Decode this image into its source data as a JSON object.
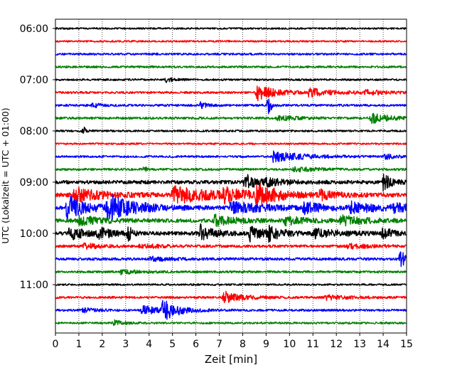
{
  "chart_data": {
    "type": "line",
    "subtype": "helicorder",
    "xlabel": "Zeit  [min]",
    "ylabel": "UTC (Lokalzeit = UTC + 01:00)",
    "xlim": [
      0,
      15
    ],
    "xticks": [
      "0",
      "1",
      "2",
      "3",
      "4",
      "5",
      "6",
      "7",
      "8",
      "9",
      "10",
      "11",
      "12",
      "13",
      "14",
      "15"
    ],
    "x_grid": "dotted vertical lines at each minute",
    "trace_interval_minutes": 15,
    "time_labels": [
      "06:00",
      "07:00",
      "08:00",
      "09:00",
      "10:00",
      "11:00"
    ],
    "trace_colors": [
      "#000000",
      "#ff0000",
      "#0000ff",
      "#008000"
    ],
    "traces": [
      {
        "start": "06:00",
        "color": "#000000",
        "base_amp": 1.2,
        "events": []
      },
      {
        "start": "06:15",
        "color": "#ff0000",
        "base_amp": 1.2,
        "events": []
      },
      {
        "start": "06:30",
        "color": "#0000ff",
        "base_amp": 1.4,
        "events": []
      },
      {
        "start": "06:45",
        "color": "#008000",
        "base_amp": 1.4,
        "events": []
      },
      {
        "start": "07:00",
        "color": "#000000",
        "base_amp": 1.3,
        "events": [
          {
            "t": 4.7,
            "amp": 3,
            "dur": 0.4
          }
        ]
      },
      {
        "start": "07:15",
        "color": "#ff0000",
        "base_amp": 1.5,
        "events": [
          {
            "t": 8.6,
            "amp": 11,
            "dur": 0.8
          },
          {
            "t": 10.8,
            "amp": 5,
            "dur": 1.2
          },
          {
            "t": 13.2,
            "amp": 3,
            "dur": 0.8
          }
        ]
      },
      {
        "start": "07:30",
        "color": "#0000ff",
        "base_amp": 1.5,
        "events": [
          {
            "t": 9.1,
            "amp": 16,
            "dur": 0.1
          },
          {
            "t": 6.2,
            "amp": 4,
            "dur": 0.3
          },
          {
            "t": 1.6,
            "amp": 3,
            "dur": 0.3
          }
        ]
      },
      {
        "start": "07:45",
        "color": "#008000",
        "base_amp": 1.6,
        "events": [
          {
            "t": 13.5,
            "amp": 7,
            "dur": 0.7
          },
          {
            "t": 9.5,
            "amp": 3,
            "dur": 0.8
          }
        ]
      },
      {
        "start": "08:00",
        "color": "#000000",
        "base_amp": 1.3,
        "events": [
          {
            "t": 1.2,
            "amp": 6,
            "dur": 0.1
          }
        ]
      },
      {
        "start": "08:15",
        "color": "#ff0000",
        "base_amp": 1.2,
        "events": []
      },
      {
        "start": "08:30",
        "color": "#0000ff",
        "base_amp": 1.4,
        "events": [
          {
            "t": 9.3,
            "amp": 7,
            "dur": 1.3
          },
          {
            "t": 14.1,
            "amp": 3,
            "dur": 0.5
          }
        ]
      },
      {
        "start": "08:45",
        "color": "#008000",
        "base_amp": 1.5,
        "events": [
          {
            "t": 3.8,
            "amp": 5,
            "dur": 0.1
          },
          {
            "t": 10.2,
            "amp": 3,
            "dur": 1.0
          }
        ]
      },
      {
        "start": "09:00",
        "color": "#000000",
        "base_amp": 2.5,
        "events": [
          {
            "t": 8.1,
            "amp": 11,
            "dur": 0.5
          },
          {
            "t": 14.0,
            "amp": 13,
            "dur": 0.3
          },
          {
            "t": 9.0,
            "amp": 4,
            "dur": 0.8
          }
        ]
      },
      {
        "start": "09:15",
        "color": "#ff0000",
        "base_amp": 3,
        "events": [
          {
            "t": 0.8,
            "amp": 10,
            "dur": 1.0
          },
          {
            "t": 5.0,
            "amp": 12,
            "dur": 1.5
          },
          {
            "t": 7.2,
            "amp": 8,
            "dur": 0.8
          },
          {
            "t": 8.6,
            "amp": 13,
            "dur": 0.9
          },
          {
            "t": 11.3,
            "amp": 6,
            "dur": 0.5
          }
        ]
      },
      {
        "start": "09:30",
        "color": "#0000ff",
        "base_amp": 2.5,
        "events": [
          {
            "t": 0.5,
            "amp": 17,
            "dur": 0.8
          },
          {
            "t": 2.2,
            "amp": 18,
            "dur": 1.2
          },
          {
            "t": 7.5,
            "amp": 8,
            "dur": 1.5
          },
          {
            "t": 10.6,
            "amp": 7,
            "dur": 0.8
          },
          {
            "t": 12.6,
            "amp": 7,
            "dur": 1.2
          },
          {
            "t": 14.4,
            "amp": 6,
            "dur": 0.6
          }
        ]
      },
      {
        "start": "09:45",
        "color": "#008000",
        "base_amp": 2.5,
        "events": [
          {
            "t": 1.0,
            "amp": 6,
            "dur": 1.0
          },
          {
            "t": 6.8,
            "amp": 7,
            "dur": 0.8
          },
          {
            "t": 9.8,
            "amp": 6,
            "dur": 0.8
          },
          {
            "t": 12.2,
            "amp": 6,
            "dur": 1.0
          }
        ]
      },
      {
        "start": "10:00",
        "color": "#000000",
        "base_amp": 2.5,
        "events": [
          {
            "t": 0.6,
            "amp": 9,
            "dur": 0.6
          },
          {
            "t": 1.8,
            "amp": 7,
            "dur": 0.6
          },
          {
            "t": 3.1,
            "amp": 9,
            "dur": 0.2
          },
          {
            "t": 6.2,
            "amp": 11,
            "dur": 0.6
          },
          {
            "t": 8.3,
            "amp": 10,
            "dur": 0.6
          },
          {
            "t": 9.1,
            "amp": 8,
            "dur": 0.6
          },
          {
            "t": 11.0,
            "amp": 6,
            "dur": 1.2
          },
          {
            "t": 14.0,
            "amp": 9,
            "dur": 0.3
          }
        ]
      },
      {
        "start": "10:15",
        "color": "#ff0000",
        "base_amp": 1.8,
        "events": [
          {
            "t": 1.2,
            "amp": 4,
            "dur": 0.6
          },
          {
            "t": 3.6,
            "amp": 3,
            "dur": 0.8
          },
          {
            "t": 12.5,
            "amp": 3,
            "dur": 1.0
          }
        ]
      },
      {
        "start": "10:30",
        "color": "#0000ff",
        "base_amp": 1.8,
        "events": [
          {
            "t": 14.7,
            "amp": 11,
            "dur": 0.4
          },
          {
            "t": 4.0,
            "amp": 3,
            "dur": 0.8
          }
        ]
      },
      {
        "start": "10:45",
        "color": "#008000",
        "base_amp": 1.5,
        "events": [
          {
            "t": 2.8,
            "amp": 3,
            "dur": 0.8
          }
        ]
      },
      {
        "start": "11:00",
        "color": "#000000",
        "base_amp": 1.2,
        "events": []
      },
      {
        "start": "11:15",
        "color": "#ff0000",
        "base_amp": 1.5,
        "events": [
          {
            "t": 7.2,
            "amp": 8,
            "dur": 0.8
          },
          {
            "t": 11.5,
            "amp": 3,
            "dur": 1.0
          }
        ]
      },
      {
        "start": "11:30",
        "color": "#0000ff",
        "base_amp": 1.5,
        "events": [
          {
            "t": 4.6,
            "amp": 14,
            "dur": 0.6
          },
          {
            "t": 3.7,
            "amp": 6,
            "dur": 0.8
          },
          {
            "t": 1.2,
            "amp": 3,
            "dur": 0.5
          }
        ]
      },
      {
        "start": "11:45",
        "color": "#008000",
        "base_amp": 1.3,
        "events": [
          {
            "t": 2.5,
            "amp": 4,
            "dur": 0.4
          }
        ]
      }
    ]
  }
}
